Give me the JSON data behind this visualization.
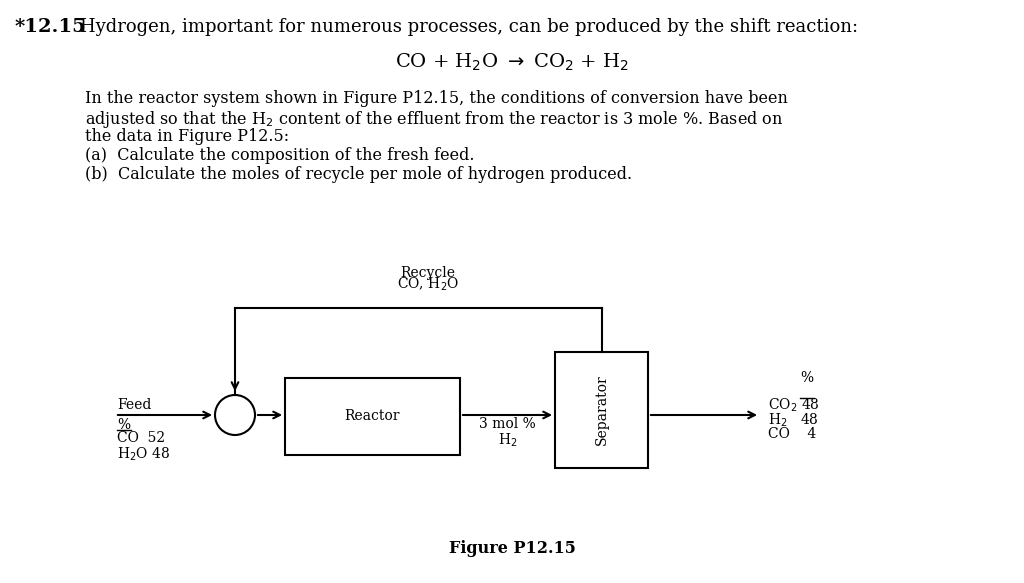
{
  "background_color": "#ffffff",
  "title_number": "*12.15",
  "title_text": "Hydrogen, important for numerous processes, can be produced by the shift reaction:",
  "paragraph_line1": "In the reactor system shown in Figure P12.15, the conditions of conversion have been",
  "paragraph_line2": "adjusted so that the H$_2$ content of the effluent from the reactor is 3 mole %. Based on",
  "paragraph_line3": "the data in Figure P12.5:",
  "part_a": "(a)  Calculate the composition of the fresh feed.",
  "part_b": "(b)  Calculate the moles of recycle per mole of hydrogen produced.",
  "figure_label": "Figure P12.15",
  "recycle_label": "Recycle",
  "recycle_species": "CO, H$_2$O",
  "feed_label": "Feed",
  "feed_percent_label": "%",
  "feed_co": "CO  52",
  "feed_h2o": "H$_2$O 48",
  "reactor_label": "Reactor",
  "reactor_outlet_label": "3 mol %",
  "reactor_outlet_species": "H$_2$",
  "separator_label": "Separator",
  "product_percent": "%",
  "product_co2": "CO$_2$ 48",
  "product_h2": "H$_2$   48",
  "product_co": "CO    4",
  "fontsize_title": 13,
  "fontsize_body": 11.5,
  "fontsize_diag": 10
}
